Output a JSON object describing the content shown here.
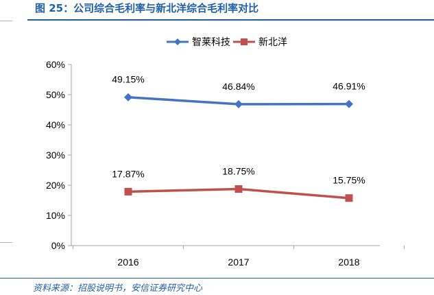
{
  "figure": {
    "title": "图 25：公司综合毛利率与新北洋综合毛利率对比",
    "source": "资料来源：招股说明书，安信证券研究中心"
  },
  "colors": {
    "accent": "#1f5fa8",
    "series_1": "#4472c4",
    "series_2": "#c0504d"
  },
  "chart_data": {
    "type": "line",
    "title": "",
    "xlabel": "",
    "ylabel": "",
    "categories": [
      "2016",
      "2017",
      "2018"
    ],
    "ylim": [
      0,
      60
    ],
    "y_ticks": [
      0,
      10,
      20,
      30,
      40,
      50,
      60
    ],
    "y_tick_labels": [
      "0%",
      "10%",
      "20%",
      "30%",
      "40%",
      "50%",
      "60%"
    ],
    "legend_position": "top-center",
    "grid": false,
    "series": [
      {
        "name": "智莱科技",
        "values": [
          49.15,
          46.84,
          46.91
        ],
        "labels": [
          "49.15%",
          "46.84%",
          "46.91%"
        ],
        "color": "#4472c4",
        "marker": "diamond"
      },
      {
        "name": "新北洋",
        "values": [
          17.87,
          18.75,
          15.75
        ],
        "labels": [
          "17.87%",
          "18.75%",
          "15.75%"
        ],
        "color": "#c0504d",
        "marker": "square"
      }
    ]
  }
}
